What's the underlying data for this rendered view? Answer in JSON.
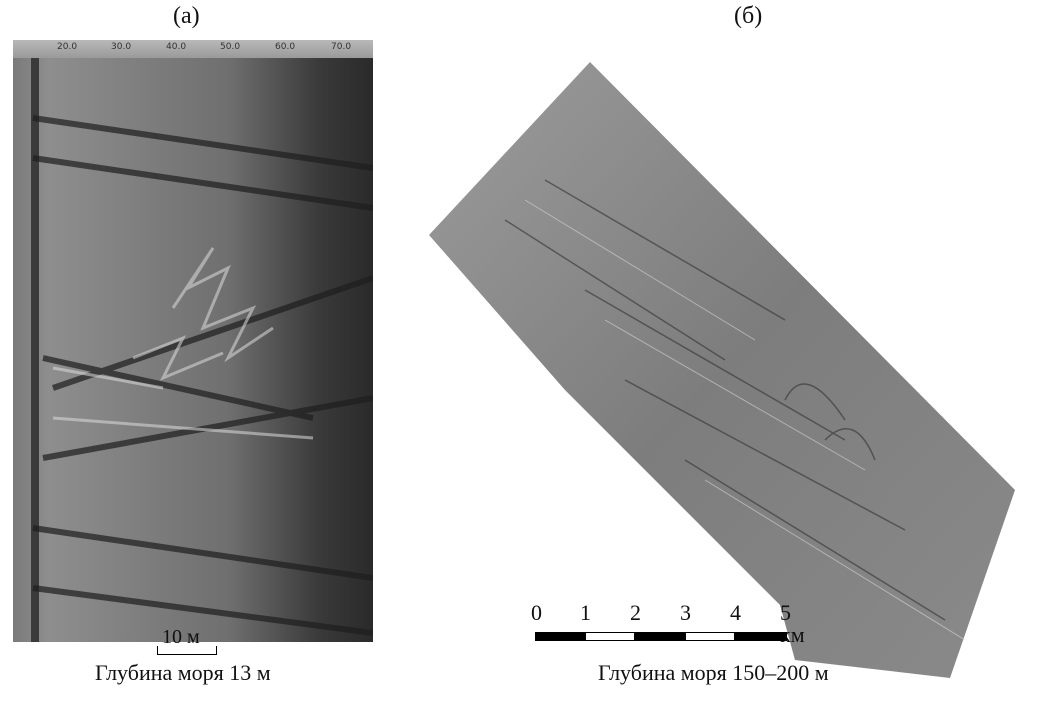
{
  "panel_a": {
    "label": "(а)",
    "axis_ticks": [
      "20.0",
      "30.0",
      "40.0",
      "50.0",
      "60.0",
      "70.0"
    ],
    "scale_label": "10 м",
    "caption": "Глубина моря 13 м"
  },
  "panel_b": {
    "label": "(б)",
    "scale_ticks": [
      "0",
      "1",
      "2",
      "3",
      "4",
      "5 км"
    ],
    "caption": "Глубина моря 150–200 м"
  },
  "colors": {
    "background": "#ffffff",
    "sonar_dark": "#2a2a2a",
    "sonar_light": "#9a9a9a"
  }
}
